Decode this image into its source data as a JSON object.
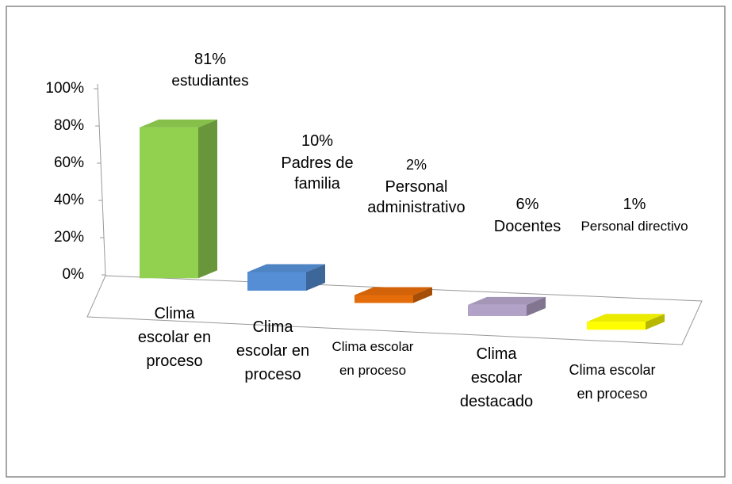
{
  "chart_data": {
    "type": "bar3d",
    "categories": [
      "Clima escolar en proceso",
      "Clima escolar en proceso",
      "Clima escolar en proceso",
      "Clima escolar destacado",
      "Clima escolar en proceso"
    ],
    "labels": [
      "estudiantes",
      "Padres de familia",
      "Personal administrativo",
      "Docentes",
      "Personal directivo"
    ],
    "values": [
      81,
      10,
      2,
      6,
      1
    ],
    "value_labels": [
      "81%",
      "10%",
      "2%",
      "6%",
      "1%"
    ],
    "colors": [
      "#92d050",
      "#558ed5",
      "#e46c0a",
      "#b3a2c7",
      "#ffff00"
    ],
    "ylim": [
      0,
      100
    ],
    "yticks": [
      {
        "value": 0,
        "label": "0%"
      },
      {
        "value": 20,
        "label": "20%"
      },
      {
        "value": 40,
        "label": "40%"
      },
      {
        "value": 60,
        "label": "60%"
      },
      {
        "value": 80,
        "label": "80%"
      },
      {
        "value": 100,
        "label": "100%"
      }
    ]
  }
}
